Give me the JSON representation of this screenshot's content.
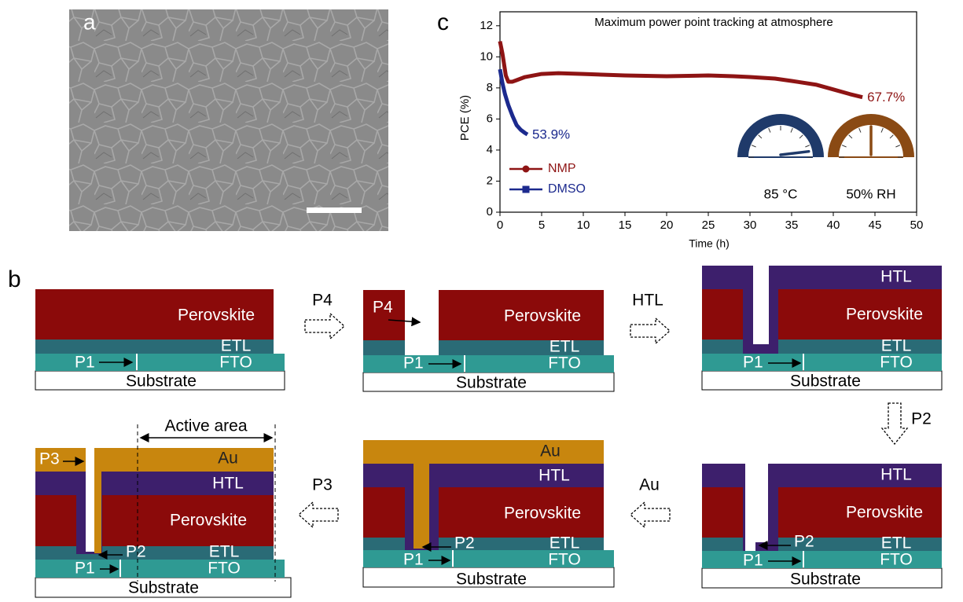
{
  "panel_a": {
    "label": "a"
  },
  "panel_b": {
    "label": "b",
    "step_arrows": [
      "P4",
      "HTL",
      "P2",
      "Au",
      "P3"
    ],
    "steps": [
      {
        "perovskite": "Perovskite",
        "etl": "ETL",
        "fto": "FTO",
        "p1": "P1",
        "substrate": "Substrate"
      },
      {
        "p4": "P4",
        "perovskite": "Perovskite",
        "etl": "ETL",
        "fto": "FTO",
        "p1": "P1",
        "substrate": "Substrate"
      },
      {
        "htl": "HTL",
        "perovskite": "Perovskite",
        "etl": "ETL",
        "fto": "FTO",
        "p1": "P1",
        "substrate": "Substrate"
      },
      {
        "htl": "HTL",
        "perovskite": "Perovskite",
        "etl": "ETL",
        "fto": "FTO",
        "p1": "P1",
        "p2": "P2",
        "substrate": "Substrate"
      },
      {
        "au": "Au",
        "htl": "HTL",
        "perovskite": "Perovskite",
        "etl": "ETL",
        "fto": "FTO",
        "p1": "P1",
        "p2": "P2",
        "substrate": "Substrate"
      },
      {
        "active_area": "Active area",
        "au": "Au",
        "p3": "P3",
        "htl": "HTL",
        "perovskite": "Perovskite",
        "etl": "ETL",
        "fto": "FTO",
        "p1": "P1",
        "p2": "P2",
        "substrate": "Substrate"
      }
    ]
  },
  "chart_data": {
    "type": "line",
    "panel_label": "c",
    "title": "Maximum power point tracking at atmosphere",
    "x_label": "Time (h)",
    "y_label": "PCE (%)",
    "xlim": [
      0,
      50
    ],
    "ylim": [
      0,
      12.9
    ],
    "xticks": [
      0,
      5,
      10,
      15,
      20,
      25,
      30,
      35,
      40,
      45,
      50
    ],
    "yticks": [
      0,
      2,
      4,
      6,
      8,
      10,
      12
    ],
    "legend_position": "lower left",
    "series": [
      {
        "name": "NMP",
        "color": "#8e1414",
        "marker": "circle",
        "x": [
          0,
          0.3,
          0.7,
          1,
          1.5,
          2,
          3,
          4,
          5,
          7,
          10,
          15,
          20,
          25,
          28,
          30,
          33,
          35,
          38,
          40,
          42,
          43.5
        ],
        "values": [
          11,
          10.2,
          8.8,
          8.4,
          8.4,
          8.5,
          8.7,
          8.8,
          8.9,
          8.95,
          8.9,
          8.8,
          8.75,
          8.8,
          8.75,
          8.7,
          8.6,
          8.45,
          8.2,
          7.9,
          7.6,
          7.4
        ]
      },
      {
        "name": "DMSO",
        "color": "#1c2a8e",
        "marker": "square",
        "x": [
          0,
          0.3,
          0.6,
          1,
          1.5,
          2,
          2.5,
          3,
          3.3
        ],
        "values": [
          9.2,
          8.3,
          7.6,
          6.9,
          6.2,
          5.6,
          5.3,
          5.1,
          5.0
        ]
      }
    ],
    "annotations": [
      {
        "text": "67.7%",
        "series": 0
      },
      {
        "text": "53.9%",
        "series": 1
      }
    ],
    "gauges": [
      {
        "label": "85 °C",
        "color": "#1f3a6a"
      },
      {
        "label": "50% RH",
        "color": "#8a4a14"
      }
    ]
  }
}
